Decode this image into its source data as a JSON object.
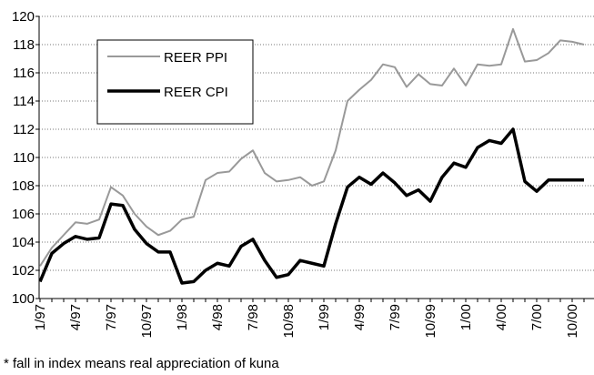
{
  "chart_data": {
    "type": "line",
    "footnote": "* fall in index means real appreciation of kuna",
    "categories": [
      "1/97",
      null,
      null,
      "4/97",
      null,
      null,
      "7/97",
      null,
      null,
      "10/97",
      null,
      null,
      "1/98",
      null,
      null,
      "4/98",
      null,
      null,
      "7/98",
      null,
      null,
      "10/98",
      null,
      null,
      "1/99",
      null,
      null,
      "4/99",
      null,
      null,
      "7/99",
      null,
      null,
      "10/99",
      null,
      null,
      "1/00",
      null,
      null,
      "4/00",
      null,
      null,
      "7/00",
      null,
      null,
      "10/00",
      null
    ],
    "series": [
      {
        "name": "REER PPI",
        "color": "#999999",
        "width": 2,
        "values": [
          102.3,
          103.6,
          104.5,
          105.4,
          105.3,
          105.6,
          107.9,
          107.3,
          106.0,
          105.1,
          104.5,
          104.8,
          105.6,
          105.8,
          108.4,
          108.9,
          109.0,
          109.9,
          110.5,
          108.9,
          108.3,
          108.4,
          108.6,
          108.0,
          108.3,
          110.5,
          114.0,
          114.8,
          115.5,
          116.6,
          116.4,
          115.0,
          115.9,
          115.2,
          115.1,
          116.3,
          115.1,
          116.6,
          116.5,
          116.6,
          119.1,
          116.8,
          116.9,
          117.4,
          118.3,
          118.2,
          118.0
        ]
      },
      {
        "name": "REER CPI",
        "color": "#000000",
        "width": 3.5,
        "values": [
          101.2,
          103.2,
          103.9,
          104.4,
          104.2,
          104.3,
          106.7,
          106.6,
          104.9,
          103.9,
          103.3,
          103.3,
          101.1,
          101.2,
          102.0,
          102.5,
          102.3,
          103.7,
          104.2,
          102.7,
          101.5,
          101.7,
          102.7,
          102.5,
          102.3,
          105.3,
          107.9,
          108.6,
          108.1,
          108.9,
          108.2,
          107.3,
          107.7,
          106.9,
          108.6,
          109.6,
          109.3,
          110.7,
          111.2,
          111.0,
          112.0,
          108.3,
          107.6,
          108.4,
          108.4,
          108.4,
          108.4
        ]
      }
    ],
    "ylim": [
      100,
      120
    ],
    "yticks": [
      100,
      102,
      104,
      106,
      108,
      110,
      112,
      114,
      116,
      118,
      120
    ],
    "grid": true
  }
}
